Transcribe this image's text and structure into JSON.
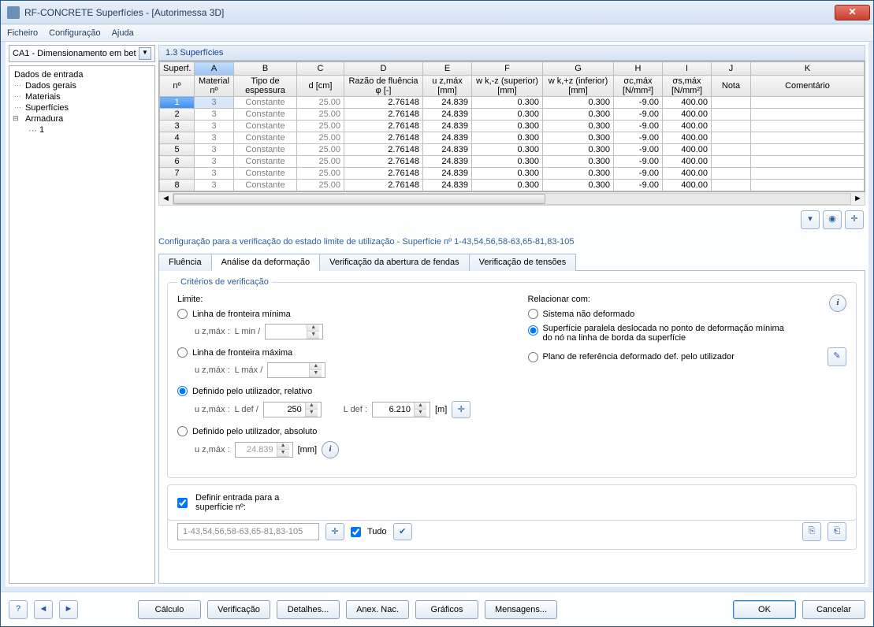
{
  "window": {
    "title": "RF-CONCRETE Superfícies - [Autorimessa 3D]"
  },
  "menu": {
    "file": "Ficheiro",
    "config": "Configuração",
    "help": "Ajuda"
  },
  "combo": {
    "value": "CA1 - Dimensionamento em bet"
  },
  "tree": {
    "n0": "Dados de entrada",
    "n1": "Dados gerais",
    "n2": "Materiais",
    "n3": "Superfícies",
    "n4": "Armadura",
    "n5": "1"
  },
  "panel": {
    "title": "1.3 Superfícies"
  },
  "table": {
    "colLetters": [
      "A",
      "B",
      "C",
      "D",
      "E",
      "F",
      "G",
      "H",
      "I",
      "J",
      "K"
    ],
    "h_surf": "Superf.",
    "h_no": "nº",
    "h_matno": "Material\nnº",
    "h_tipo": "Tipo de\nespessura",
    "h_dcm": "d [cm]",
    "h_razao": "Razão de fluência\nφ [-]",
    "h_uzmax": "u z,máx\n[mm]",
    "h_wkz_sup": "w k,-z (superior)\n[mm]",
    "h_wkz_inf": "w k,+z (inferior)\n[mm]",
    "h_sigc": "σc,máx\n[N/mm²]",
    "h_sigs": "σs,máx\n[N/mm²]",
    "h_nota": "Nota",
    "h_coment": "Comentário",
    "rows": [
      {
        "n": "1",
        "m": "3",
        "t": "Constante",
        "d": "25.00",
        "r": "2.76148",
        "u": "24.839",
        "w1": "0.300",
        "w2": "0.300",
        "sc": "-9.00",
        "ss": "400.00"
      },
      {
        "n": "2",
        "m": "3",
        "t": "Constante",
        "d": "25.00",
        "r": "2.76148",
        "u": "24.839",
        "w1": "0.300",
        "w2": "0.300",
        "sc": "-9.00",
        "ss": "400.00"
      },
      {
        "n": "3",
        "m": "3",
        "t": "Constante",
        "d": "25.00",
        "r": "2.76148",
        "u": "24.839",
        "w1": "0.300",
        "w2": "0.300",
        "sc": "-9.00",
        "ss": "400.00"
      },
      {
        "n": "4",
        "m": "3",
        "t": "Constante",
        "d": "25.00",
        "r": "2.76148",
        "u": "24.839",
        "w1": "0.300",
        "w2": "0.300",
        "sc": "-9.00",
        "ss": "400.00"
      },
      {
        "n": "5",
        "m": "3",
        "t": "Constante",
        "d": "25.00",
        "r": "2.76148",
        "u": "24.839",
        "w1": "0.300",
        "w2": "0.300",
        "sc": "-9.00",
        "ss": "400.00"
      },
      {
        "n": "6",
        "m": "3",
        "t": "Constante",
        "d": "25.00",
        "r": "2.76148",
        "u": "24.839",
        "w1": "0.300",
        "w2": "0.300",
        "sc": "-9.00",
        "ss": "400.00"
      },
      {
        "n": "7",
        "m": "3",
        "t": "Constante",
        "d": "25.00",
        "r": "2.76148",
        "u": "24.839",
        "w1": "0.300",
        "w2": "0.300",
        "sc": "-9.00",
        "ss": "400.00"
      },
      {
        "n": "8",
        "m": "3",
        "t": "Constante",
        "d": "25.00",
        "r": "2.76148",
        "u": "24.839",
        "w1": "0.300",
        "w2": "0.300",
        "sc": "-9.00",
        "ss": "400.00"
      }
    ]
  },
  "section": {
    "title": "Configuração para a verificação do estado limite de utilização - Superfície nº 1-43,54,56,58-63,65-81,83-105"
  },
  "tabs": {
    "t1": "Fluência",
    "t2": "Análise da deformação",
    "t3": "Verificação da abertura de fendas",
    "t4": "Verificação de tensões"
  },
  "form": {
    "legend": "Critérios de verificação",
    "limite": "Limite:",
    "r_min": "Linha de fronteira mínima",
    "lab_uzmax": "u z,máx :",
    "lab_lmin": "L min /",
    "r_max": "Linha de fronteira máxima",
    "lab_lmax": "L máx /",
    "r_rel": "Definido pelo utilizador, relativo",
    "lab_ldef": "L def /",
    "val_ldef_ratio": "250",
    "lab_ldef2": "L def :",
    "val_ldef": "6.210",
    "unit_m": "[m]",
    "r_abs": "Definido pelo utilizador, absoluto",
    "val_abs": "24.839",
    "unit_mm": "[mm]",
    "relacionar": "Relacionar com:",
    "rr1": "Sistema não deformado",
    "rr2": "Superfície paralela deslocada no ponto de deformação mínima do nó na linha de borda da superfície",
    "rr3": "Plano de referência deformado def. pelo utilizador"
  },
  "define": {
    "chk": "Definir entrada para a superfície nº:",
    "list": "1-43,54,56,58-63,65-81,83-105",
    "tudo": "Tudo"
  },
  "buttons": {
    "calc": "Cálculo",
    "verif": "Verificação",
    "det": "Detalhes...",
    "anex": "Anex. Nac.",
    "graf": "Gráficos",
    "msg": "Mensagens...",
    "ok": "OK",
    "cancel": "Cancelar"
  }
}
